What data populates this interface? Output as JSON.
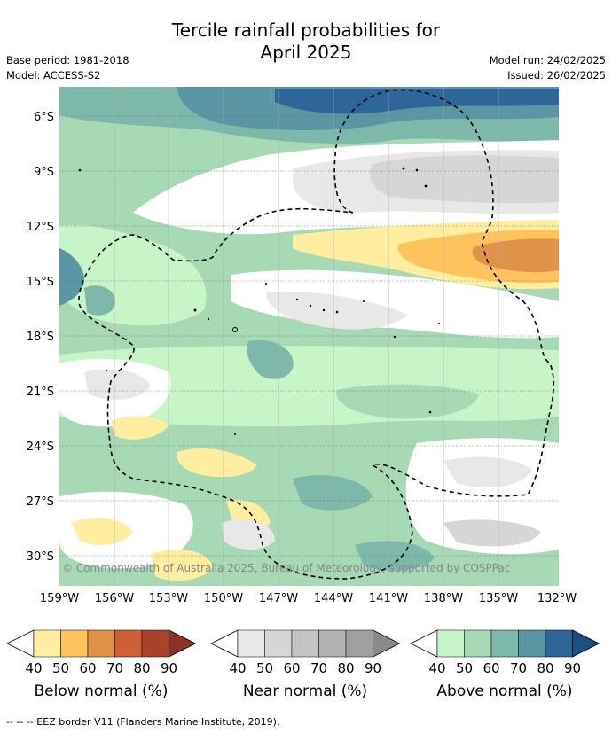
{
  "title": {
    "line1": "Tercile rainfall probabilities for",
    "line2": "April 2025"
  },
  "meta": {
    "base_period": "Base period: 1981-2018",
    "model": "Model: ACCESS-S2",
    "model_run": "Model run: 24/02/2025",
    "issued": "Issued: 26/02/2025"
  },
  "map": {
    "lat_labels": [
      "6°S",
      "9°S",
      "12°S",
      "15°S",
      "18°S",
      "21°S",
      "24°S",
      "27°S",
      "30°S"
    ],
    "lon_labels": [
      "159°W",
      "156°W",
      "153°W",
      "150°W",
      "147°W",
      "144°W",
      "141°W",
      "138°W",
      "135°W",
      "132°W"
    ],
    "copyright": "© Commonwealth of Australia 2025, Bureau of Meteorology, supported by COSPPac"
  },
  "colorbars": [
    {
      "label": "Below normal (%)",
      "ticks": [
        "40",
        "50",
        "60",
        "70",
        "80",
        "90"
      ],
      "colors": [
        "#ffeda0",
        "#fec35c",
        "#e0924a",
        "#cd6034",
        "#a8432a",
        "#8a3224"
      ]
    },
    {
      "label": "Near normal (%)",
      "ticks": [
        "40",
        "50",
        "60",
        "70",
        "80",
        "90"
      ],
      "colors": [
        "#e8e8e8",
        "#d6d6d6",
        "#c4c4c4",
        "#b2b2b2",
        "#a0a0a0",
        "#8a8a8a"
      ]
    },
    {
      "label": "Above normal (%)",
      "ticks": [
        "40",
        "50",
        "60",
        "70",
        "80",
        "90"
      ],
      "colors": [
        "#c7f5c7",
        "#a6d9b4",
        "#7eb8ab",
        "#5a96a3",
        "#2f6699",
        "#1d4e80"
      ]
    }
  ],
  "footnote": "-- -- -- EEZ border V11 (Flanders Marine Institute, 2019)."
}
